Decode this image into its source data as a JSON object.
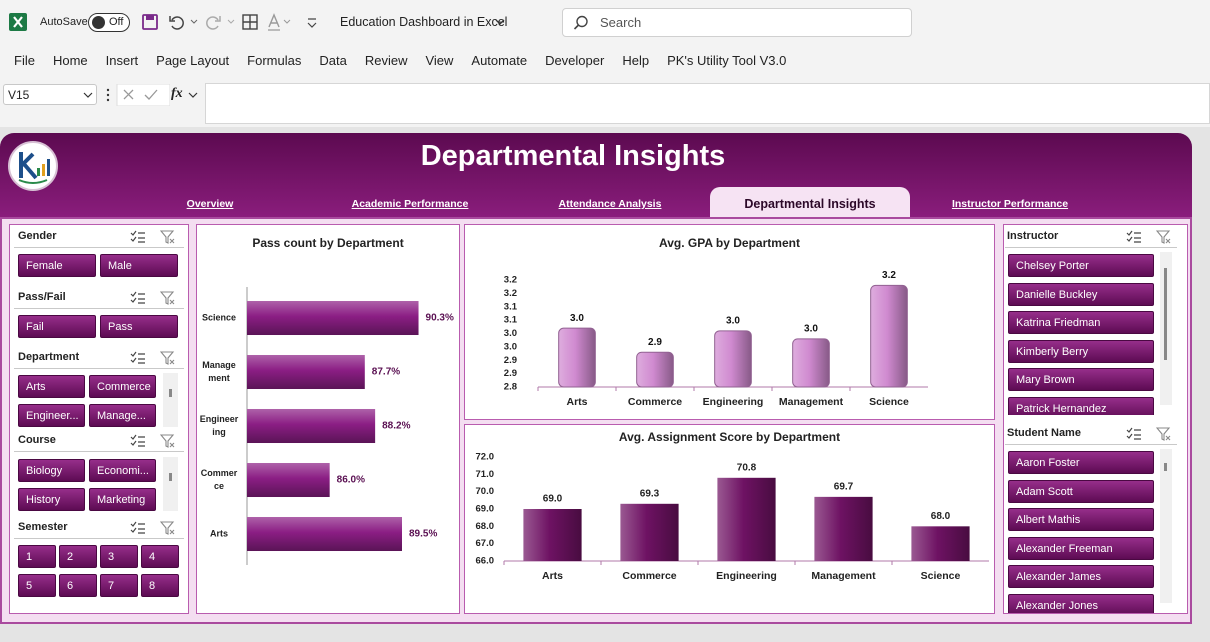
{
  "excel": {
    "autosave_label": "AutoSave",
    "autosave_state": "Off",
    "file_name": "Education Dashboard in Excel",
    "search_placeholder": "Search",
    "menu": [
      "File",
      "Home",
      "Insert",
      "Page Layout",
      "Formulas",
      "Data",
      "Review",
      "View",
      "Automate",
      "Developer",
      "Help",
      "PK's Utility Tool V3.0"
    ],
    "name_box": "V15",
    "fx": "fx"
  },
  "dashboard": {
    "title": "Departmental Insights",
    "tabs": [
      "Overview",
      "Academic Performance",
      "Attendance Analysis",
      "Departmental Insights",
      "Instructor Performance"
    ],
    "left_slicers": [
      {
        "title": "Gender",
        "items": [
          "Female",
          "Male"
        ]
      },
      {
        "title": "Pass/Fail",
        "items": [
          "Fail",
          "Pass"
        ]
      },
      {
        "title": "Department",
        "items": [
          "Arts",
          "Commerce",
          "Engineer...",
          "Manage..."
        ]
      },
      {
        "title": "Course",
        "items": [
          "Biology",
          "Economi...",
          "History",
          "Marketing"
        ]
      },
      {
        "title": "Semester",
        "items": [
          "1",
          "2",
          "3",
          "4",
          "5",
          "6",
          "7",
          "8"
        ]
      }
    ],
    "right_slicers": [
      {
        "title": "Instructor",
        "items": [
          "Chelsey Porter",
          "Danielle Buckley",
          "Katrina Friedman",
          "Kimberly Berry",
          "Mary Brown",
          "Patrick Hernandez"
        ]
      },
      {
        "title": "Student Name",
        "items": [
          "Aaron Foster",
          "Adam Scott",
          "Albert Mathis",
          "Alexander Freeman",
          "Alexander James",
          "Alexander Jones"
        ]
      }
    ]
  },
  "chart_data": [
    {
      "type": "bar",
      "horizontal": true,
      "title": "Pass count by Department",
      "categories": [
        "Science",
        "Management",
        "Engineering",
        "Commerce",
        "Arts"
      ],
      "values": [
        90.3,
        87.7,
        88.2,
        86.0,
        89.5
      ],
      "value_labels": [
        "90.3%",
        "87.7%",
        "88.2%",
        "86.0%",
        "89.5%"
      ],
      "color": "#8b1e84",
      "xlim": [
        82,
        91
      ],
      "grid": false
    },
    {
      "type": "bar",
      "title": "Avg. GPA by Department",
      "categories": [
        "Arts",
        "Commerce",
        "Engineering",
        "Management",
        "Science"
      ],
      "values": [
        3.02,
        2.93,
        3.01,
        2.98,
        3.18
      ],
      "value_labels": [
        "3.0",
        "2.9",
        "3.0",
        "3.0",
        "3.2"
      ],
      "color": "#d08ad0",
      "ylim": [
        2.8,
        3.2
      ],
      "yticks": [
        2.8,
        {
          "value": 2.85,
          "label": "2.9"
        },
        2.9,
        {
          "value": 2.95,
          "label": "3.0"
        },
        {
          "value": 3.0,
          "label": "3.0"
        },
        {
          "value": 3.05,
          "label": "3.1"
        },
        3.1,
        {
          "value": 3.15,
          "label": "3.2"
        },
        3.2
      ],
      "grid": false
    },
    {
      "type": "bar",
      "title": "Avg. Assignment Score by Department",
      "categories": [
        "Arts",
        "Commerce",
        "Engineering",
        "Management",
        "Science"
      ],
      "values": [
        69.0,
        69.3,
        70.8,
        69.7,
        68.0
      ],
      "value_labels": [
        "69.0",
        "69.3",
        "70.8",
        "69.7",
        "68.0"
      ],
      "color": "#6e1263",
      "ylim": [
        66,
        72
      ],
      "yticks": [
        {
          "value": 66,
          "label": "66.0"
        },
        {
          "value": 67,
          "label": "67.0"
        },
        {
          "value": 68,
          "label": "68.0"
        },
        {
          "value": 69,
          "label": "69.0"
        },
        {
          "value": 70,
          "label": "70.0"
        },
        {
          "value": 71,
          "label": "71.0"
        },
        {
          "value": 72,
          "label": "72.0"
        }
      ],
      "grid": false
    }
  ]
}
